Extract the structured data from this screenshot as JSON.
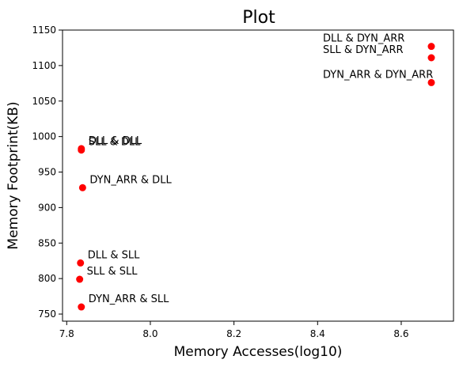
{
  "chart_data": {
    "type": "scatter",
    "title": "Plot",
    "xlabel": "Memory Accesses(log10)",
    "ylabel": "Memory Footprint(KB)",
    "xlim": [
      7.79,
      8.725
    ],
    "ylim": [
      740,
      1150
    ],
    "xticks": [
      7.8,
      8.0,
      8.2,
      8.4,
      8.6
    ],
    "xtick_labels": [
      "7.8",
      "8.0",
      "8.2",
      "8.4",
      "8.6"
    ],
    "yticks": [
      750,
      800,
      850,
      900,
      950,
      1000,
      1050,
      1100,
      1150
    ],
    "ytick_labels": [
      "750",
      "800",
      "850",
      "900",
      "950",
      "1000",
      "1050",
      "1100",
      "1150"
    ],
    "grid": false,
    "marker_color": "#ff0000",
    "points": [
      {
        "label": "DLL & DYN_ARR",
        "x": 8.672,
        "y": 1127
      },
      {
        "label": "SLL & DYN_ARR",
        "x": 8.672,
        "y": 1111
      },
      {
        "label": "DYN_ARR & DYN_ARR",
        "x": 8.672,
        "y": 1076
      },
      {
        "label": "DLL & DLL",
        "x": 7.835,
        "y": 983
      },
      {
        "label": "SLL & DLL",
        "x": 7.835,
        "y": 981
      },
      {
        "label": "DYN_ARR & DLL",
        "x": 7.838,
        "y": 928
      },
      {
        "label": "DLL & SLL",
        "x": 7.833,
        "y": 822
      },
      {
        "label": "SLL & SLL",
        "x": 7.831,
        "y": 799
      },
      {
        "label": "DYN_ARR & SLL",
        "x": 7.835,
        "y": 760
      }
    ]
  }
}
